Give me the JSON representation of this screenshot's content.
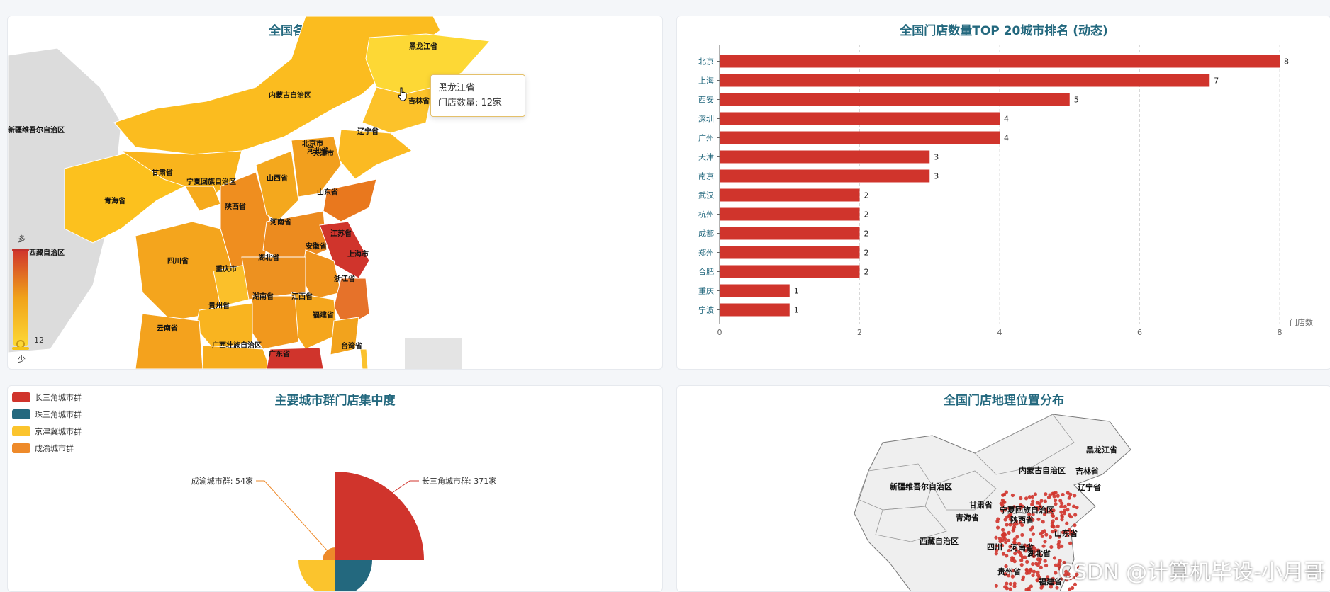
{
  "panels": {
    "map": {
      "title": "全国各省份门店数量分布"
    },
    "bar": {
      "title": "全国门店数量TOP 20城市排名 (动态)"
    },
    "pie": {
      "title": "主要城市群门店集中度"
    },
    "geo": {
      "title": "全国门店地理位置分布"
    }
  },
  "tooltip": {
    "line1": "黑龙江省",
    "line2": "门店数量: 12家"
  },
  "visualmap": {
    "high_label": "多",
    "low_label": "少",
    "min_value": "12",
    "colors": [
      "#d0342c",
      "#f0a21a",
      "#fdd835"
    ]
  },
  "map_labels": [
    "黑龙江省",
    "吉林省",
    "内蒙古自治区",
    "辽宁省",
    "北京市",
    "天津市",
    "河北省",
    "山西省",
    "甘肃省",
    "宁夏回族自治区",
    "青海省",
    "陕西省",
    "山东省",
    "河南省",
    "江苏省",
    "安徽省",
    "上海市",
    "四川省",
    "重庆市",
    "湖北省",
    "浙江省",
    "湖南省",
    "江西省",
    "贵州省",
    "福建省",
    "云南省",
    "广西壮族自治区",
    "广东省",
    "台湾省",
    "西藏自治区",
    "新疆维吾尔自治区"
  ],
  "chart_data": [
    {
      "type": "map",
      "title": "全国各省份门店数量分布",
      "highlighted": {
        "name": "黑龙江省",
        "value": 12,
        "unit": "家"
      }
    },
    {
      "type": "bar",
      "title": "全国门店数量TOP 20城市排名 (动态)",
      "categories": [
        "北京",
        "上海",
        "西安",
        "深圳",
        "广州",
        "天津",
        "南京",
        "武汉",
        "杭州",
        "成都",
        "郑州",
        "合肥",
        "重庆",
        "宁波"
      ],
      "values": [
        8,
        7,
        5,
        4,
        4,
        3,
        3,
        2,
        2,
        2,
        2,
        2,
        1,
        1
      ],
      "xlabel": "门店数",
      "xlim": [
        0,
        8
      ],
      "xticks": [
        0,
        2,
        4,
        6,
        8
      ],
      "color": "#d0342c"
    },
    {
      "type": "pie",
      "title": "主要城市群门店集中度",
      "legend": [
        "长三角城市群",
        "珠三角城市群",
        "京津冀城市群",
        "成渝城市群"
      ],
      "colors": [
        "#d0342c",
        "#23687e",
        "#fbc42d",
        "#ee8a2a"
      ],
      "labels_visible": [
        {
          "name": "长三角城市群",
          "value": 371,
          "text": "长三角城市群: 371家"
        },
        {
          "name": "成渝城市群",
          "value": 54,
          "text": "成渝城市群: 54家"
        }
      ]
    },
    {
      "type": "scatter",
      "title": "全国门店地理位置分布",
      "region_labels": [
        "黑龙江省",
        "吉林省",
        "内蒙古自治区",
        "辽宁省",
        "新疆维吾尔自治区",
        "甘肃省",
        "宁夏回族自治区",
        "青海省",
        "陕西省",
        "山东省",
        "河南省",
        "西藏自治区",
        "四川",
        "湖北省",
        "贵州省",
        "福建省"
      ],
      "point_color": "#d0342c"
    }
  ],
  "watermark": "CSDN @计算机毕设-小月哥"
}
